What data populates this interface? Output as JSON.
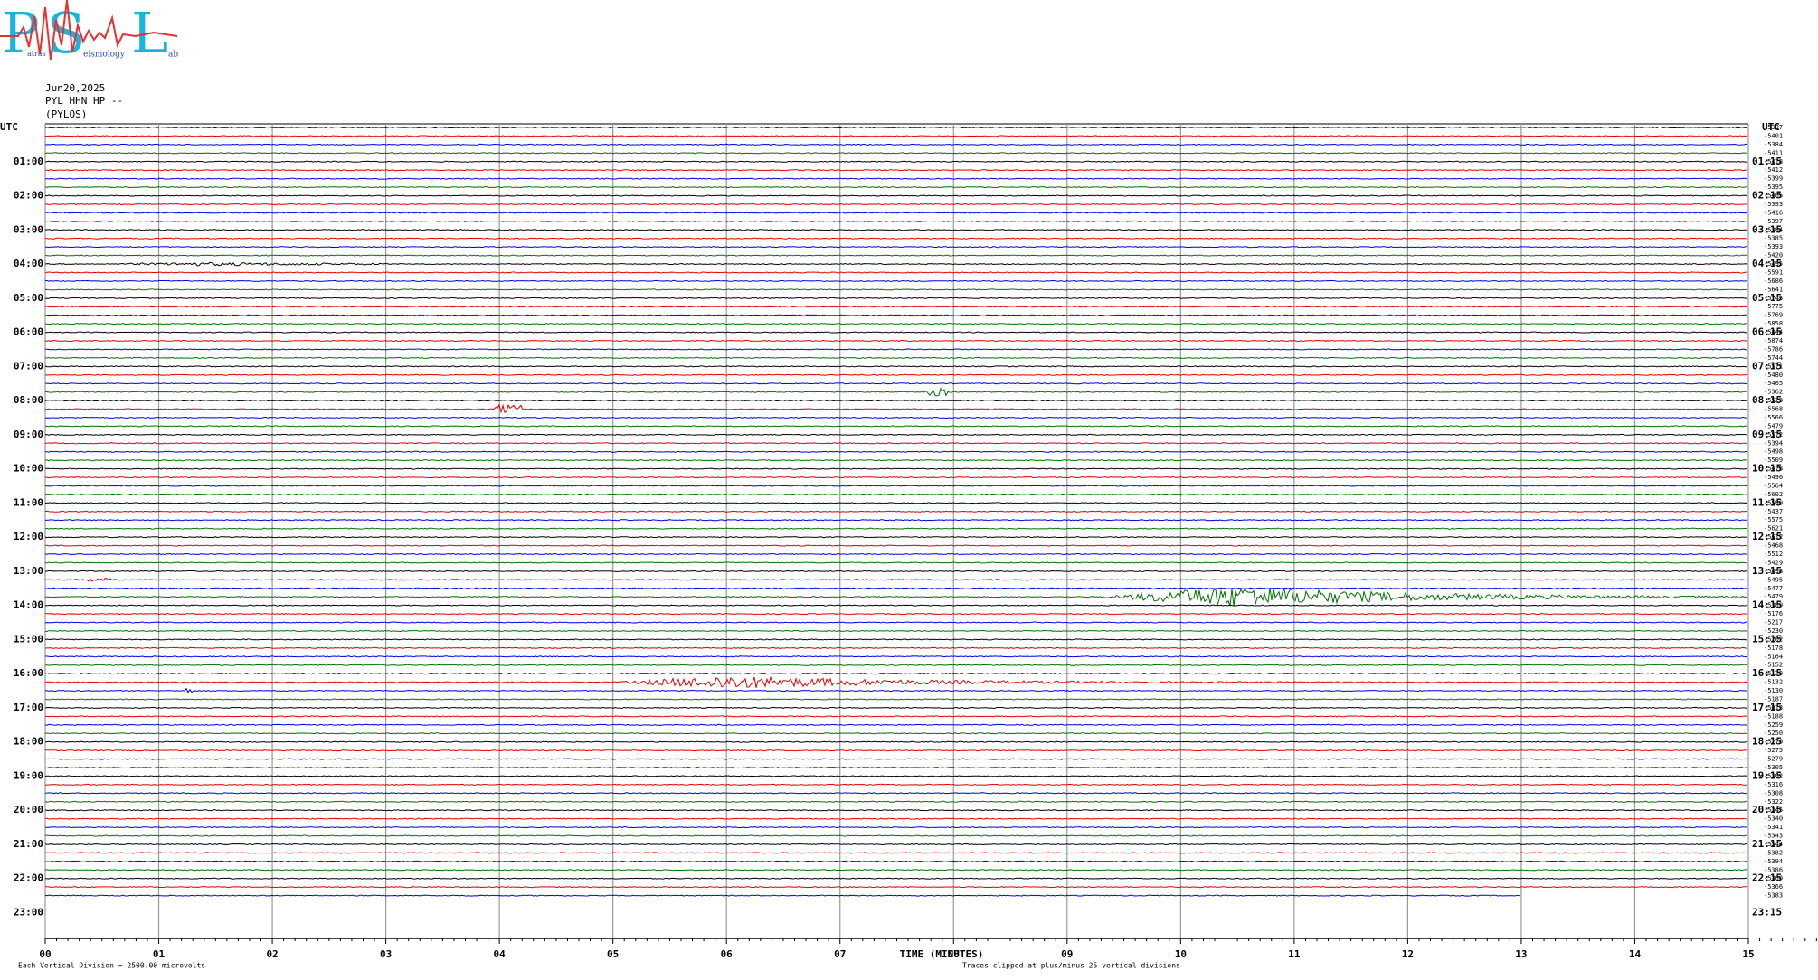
{
  "logo": {
    "letters": [
      "P",
      "S",
      "L"
    ],
    "words": [
      "atras",
      "eismology",
      "ab"
    ]
  },
  "header": {
    "date": "Jun20,2025",
    "station": "PYL HHN HP --",
    "location": "(PYLOS)"
  },
  "left_axis": {
    "title": "UTC",
    "labels": [
      "01:00",
      "02:00",
      "03:00",
      "04:00",
      "05:00",
      "06:00",
      "07:00",
      "08:00",
      "09:00",
      "10:00",
      "11:00",
      "12:00",
      "13:00",
      "14:00",
      "15:00",
      "16:00",
      "17:00",
      "18:00",
      "19:00",
      "20:00",
      "21:00",
      "22:00",
      "23:00"
    ]
  },
  "right_axis": {
    "title": "UTC",
    "labels": [
      "01:15",
      "02:15",
      "03:15",
      "04:15",
      "05:15",
      "06:15",
      "07:15",
      "08:15",
      "09:15",
      "10:15",
      "11:15",
      "12:15",
      "13:15",
      "14:15",
      "15:15",
      "16:15",
      "17:15",
      "18:15",
      "19:15",
      "20:15",
      "21:15",
      "22:15",
      "23:15"
    ]
  },
  "trace_offsets": [
    "-5397",
    "-5401",
    "-5384",
    "-5411",
    "-5418",
    "-5412",
    "-5399",
    "-5395",
    "-5405",
    "-5393",
    "-5416",
    "-5397",
    "-5384",
    "-5385",
    "-5393",
    "-5420",
    "-5495",
    "-5591",
    "-5686",
    "-5641",
    "-5743",
    "-5775",
    "-5769",
    "-5858",
    "-5844",
    "-5874",
    "-5786",
    "-5744",
    "-5571",
    "-5480",
    "-5405",
    "-5362",
    "-5523",
    "-5568",
    "-5566",
    "-5479",
    "-5572",
    "-5394",
    "-5498",
    "-5509",
    "-5478",
    "-5496",
    "-5564",
    "-5602",
    "-5580",
    "-5437",
    "-5575",
    "-5621",
    "-5612",
    "-5468",
    "-5512",
    "-5429",
    "-5498",
    "-5495",
    "-5477",
    "-5479",
    "-5389",
    "-5176",
    "-5217",
    "-5230",
    "-5202",
    "-5178",
    "-5164",
    "-5152",
    "-5129",
    "-5132",
    "-5130",
    "-5187",
    "-5013",
    "-5188",
    "-5259",
    "-5250",
    "-5270",
    "-5275",
    "-5279",
    "-5305",
    "-5302",
    "-5316",
    "-5308",
    "-5322",
    "-5345",
    "-5340",
    "-5341",
    "-5343",
    "-5344",
    "-5382",
    "-5394",
    "-5386",
    "-5360",
    "-5366",
    "-5383"
  ],
  "x_axis": {
    "labels": [
      "00",
      "01",
      "02",
      "03",
      "04",
      "05",
      "06",
      "07",
      "08",
      "09",
      "10",
      "11",
      "12",
      "13",
      "14",
      "15"
    ],
    "title": "TIME (MINUTES)"
  },
  "footer": {
    "scale": "Each Vertical Division = 2500.00 microvolts",
    "clip": "Traces clipped at plus/minus 25 vertical divisions"
  }
}
